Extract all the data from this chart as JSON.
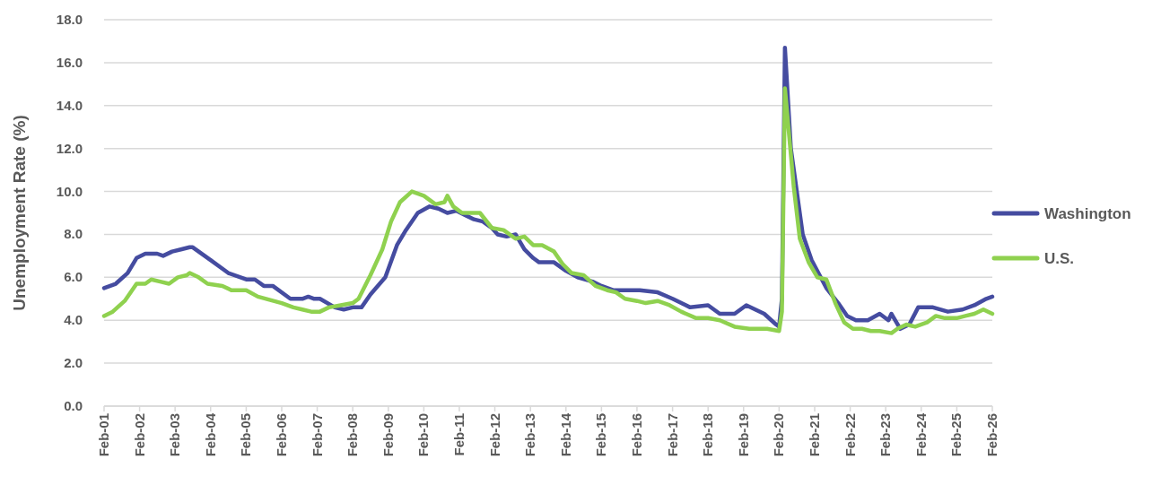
{
  "chart_data": {
    "type": "line",
    "ylabel": "Unemployment Rate (%)",
    "xlim": [
      "2001-02",
      "2026-02"
    ],
    "xticks": [
      {
        "value": "2001-02",
        "label": "Feb-01"
      },
      {
        "value": "2002-02",
        "label": "Feb-02"
      },
      {
        "value": "2003-02",
        "label": "Feb-03"
      },
      {
        "value": "2004-02",
        "label": "Feb-04"
      },
      {
        "value": "2005-02",
        "label": "Feb-05"
      },
      {
        "value": "2006-02",
        "label": "Feb-06"
      },
      {
        "value": "2007-02",
        "label": "Feb-07"
      },
      {
        "value": "2008-02",
        "label": "Feb-08"
      },
      {
        "value": "2009-02",
        "label": "Feb-09"
      },
      {
        "value": "2010-02",
        "label": "Feb-10"
      },
      {
        "value": "2011-02",
        "label": "Feb-11"
      },
      {
        "value": "2012-02",
        "label": "Feb-12"
      },
      {
        "value": "2013-02",
        "label": "Feb-13"
      },
      {
        "value": "2014-02",
        "label": "Feb-14"
      },
      {
        "value": "2015-02",
        "label": "Feb-15"
      },
      {
        "value": "2016-02",
        "label": "Feb-16"
      },
      {
        "value": "2017-02",
        "label": "Feb-17"
      },
      {
        "value": "2018-02",
        "label": "Feb-18"
      },
      {
        "value": "2019-02",
        "label": "Feb-19"
      },
      {
        "value": "2020-02",
        "label": "Feb-20"
      },
      {
        "value": "2021-02",
        "label": "Feb-21"
      },
      {
        "value": "2022-02",
        "label": "Feb-22"
      },
      {
        "value": "2023-02",
        "label": "Feb-23"
      },
      {
        "value": "2024-02",
        "label": "Feb-24"
      },
      {
        "value": "2025-02",
        "label": "Feb-25"
      },
      {
        "value": "2026-02",
        "label": "Feb-26"
      }
    ],
    "ylim": [
      0,
      18
    ],
    "yticks": [
      {
        "value": 0,
        "label": "0.0"
      },
      {
        "value": 2,
        "label": "2.0"
      },
      {
        "value": 4,
        "label": "4.0"
      },
      {
        "value": 6,
        "label": "6.0"
      },
      {
        "value": 8,
        "label": "8.0"
      },
      {
        "value": 10,
        "label": "10.0"
      },
      {
        "value": 12,
        "label": "12.0"
      },
      {
        "value": 14,
        "label": "14.0"
      },
      {
        "value": 16,
        "label": "16.0"
      },
      {
        "value": 18,
        "label": "18.0"
      }
    ],
    "grid": "y",
    "legend": "right",
    "series": [
      {
        "name": "Washington",
        "color": "#454ca0",
        "x": [
          "2001-02",
          "2001-06",
          "2001-10",
          "2002-01",
          "2002-04",
          "2002-08",
          "2002-10",
          "2003-01",
          "2003-04",
          "2003-07",
          "2003-08",
          "2004-02",
          "2004-08",
          "2005-02",
          "2005-05",
          "2005-08",
          "2005-11",
          "2006-05",
          "2006-09",
          "2006-11",
          "2007-01",
          "2007-03",
          "2007-08",
          "2007-11",
          "2008-02",
          "2008-05",
          "2008-08",
          "2009-01",
          "2009-05",
          "2009-08",
          "2009-12",
          "2010-04",
          "2010-07",
          "2010-10",
          "2011-01",
          "2011-04",
          "2011-07",
          "2011-10",
          "2012-01",
          "2012-03",
          "2012-06",
          "2012-09",
          "2012-12",
          "2013-03",
          "2013-05",
          "2013-10",
          "2014-02",
          "2014-06",
          "2014-11",
          "2015-02",
          "2015-06",
          "2016-03",
          "2016-09",
          "2017-02",
          "2017-08",
          "2018-02",
          "2018-06",
          "2018-11",
          "2019-03",
          "2019-09",
          "2020-01",
          "2020-02",
          "2020-03",
          "2020-04",
          "2020-06",
          "2020-10",
          "2021-01",
          "2021-06",
          "2021-10",
          "2022-01",
          "2022-04",
          "2022-08",
          "2022-12",
          "2023-03",
          "2023-04",
          "2023-07",
          "2023-10",
          "2024-01",
          "2024-06",
          "2024-11",
          "2025-04",
          "2025-08",
          "2025-12",
          "2026-02"
        ],
        "values": [
          5.5,
          5.7,
          6.2,
          6.9,
          7.1,
          7.1,
          7.0,
          7.2,
          7.3,
          7.4,
          7.4,
          6.8,
          6.2,
          5.9,
          5.9,
          5.6,
          5.6,
          5.0,
          5.0,
          5.1,
          5.0,
          5.0,
          4.6,
          4.5,
          4.6,
          4.6,
          5.2,
          6.0,
          7.5,
          8.2,
          9.0,
          9.3,
          9.2,
          9.0,
          9.1,
          8.9,
          8.7,
          8.6,
          8.3,
          8.0,
          7.9,
          8.0,
          7.3,
          6.9,
          6.7,
          6.7,
          6.3,
          6.0,
          5.8,
          5.6,
          5.4,
          5.4,
          5.3,
          5.0,
          4.6,
          4.7,
          4.3,
          4.3,
          4.7,
          4.3,
          3.8,
          3.7,
          5.0,
          16.7,
          12.0,
          8.0,
          6.8,
          5.5,
          4.8,
          4.2,
          4.0,
          4.0,
          4.3,
          4.0,
          4.3,
          3.6,
          3.8,
          4.6,
          4.6,
          4.4,
          4.5,
          4.7,
          5.0,
          5.1
        ]
      },
      {
        "name": "U.S.",
        "color": "#8fd14f",
        "x": [
          "2001-02",
          "2001-05",
          "2001-09",
          "2002-01",
          "2002-04",
          "2002-06",
          "2002-09",
          "2002-12",
          "2003-03",
          "2003-06",
          "2003-07",
          "2003-10",
          "2004-01",
          "2004-06",
          "2004-09",
          "2005-02",
          "2005-06",
          "2006-02",
          "2006-06",
          "2006-09",
          "2006-12",
          "2007-03",
          "2007-06",
          "2007-10",
          "2008-02",
          "2008-04",
          "2008-08",
          "2008-12",
          "2009-03",
          "2009-06",
          "2009-10",
          "2010-02",
          "2010-06",
          "2010-09",
          "2010-10",
          "2010-12",
          "2011-03",
          "2011-06",
          "2011-09",
          "2012-01",
          "2012-05",
          "2012-09",
          "2012-12",
          "2013-03",
          "2013-06",
          "2013-10",
          "2014-01",
          "2014-04",
          "2014-08",
          "2014-12",
          "2015-04",
          "2015-07",
          "2015-10",
          "2016-02",
          "2016-05",
          "2016-09",
          "2017-01",
          "2017-05",
          "2017-10",
          "2018-02",
          "2018-06",
          "2018-11",
          "2019-04",
          "2019-10",
          "2020-02",
          "2020-03",
          "2020-04",
          "2020-07",
          "2020-09",
          "2020-12",
          "2021-03",
          "2021-06",
          "2021-09",
          "2021-12",
          "2022-03",
          "2022-06",
          "2022-09",
          "2022-12",
          "2023-04",
          "2023-06",
          "2023-09",
          "2023-12",
          "2024-04",
          "2024-07",
          "2024-10",
          "2025-02",
          "2025-05",
          "2025-08",
          "2025-11",
          "2026-02"
        ],
        "values": [
          4.2,
          4.4,
          4.9,
          5.7,
          5.7,
          5.9,
          5.8,
          5.7,
          6.0,
          6.1,
          6.2,
          6.0,
          5.7,
          5.6,
          5.4,
          5.4,
          5.1,
          4.8,
          4.6,
          4.5,
          4.4,
          4.4,
          4.6,
          4.7,
          4.8,
          5.0,
          6.1,
          7.3,
          8.6,
          9.5,
          10.0,
          9.8,
          9.4,
          9.5,
          9.8,
          9.3,
          9.0,
          9.0,
          9.0,
          8.3,
          8.2,
          7.8,
          7.9,
          7.5,
          7.5,
          7.2,
          6.6,
          6.2,
          6.1,
          5.6,
          5.4,
          5.3,
          5.0,
          4.9,
          4.8,
          4.9,
          4.7,
          4.4,
          4.1,
          4.1,
          4.0,
          3.7,
          3.6,
          3.6,
          3.5,
          4.4,
          14.8,
          10.2,
          7.8,
          6.7,
          6.0,
          5.9,
          4.8,
          3.9,
          3.6,
          3.6,
          3.5,
          3.5,
          3.4,
          3.6,
          3.8,
          3.7,
          3.9,
          4.2,
          4.1,
          4.1,
          4.2,
          4.3,
          4.5,
          4.3
        ]
      }
    ]
  }
}
